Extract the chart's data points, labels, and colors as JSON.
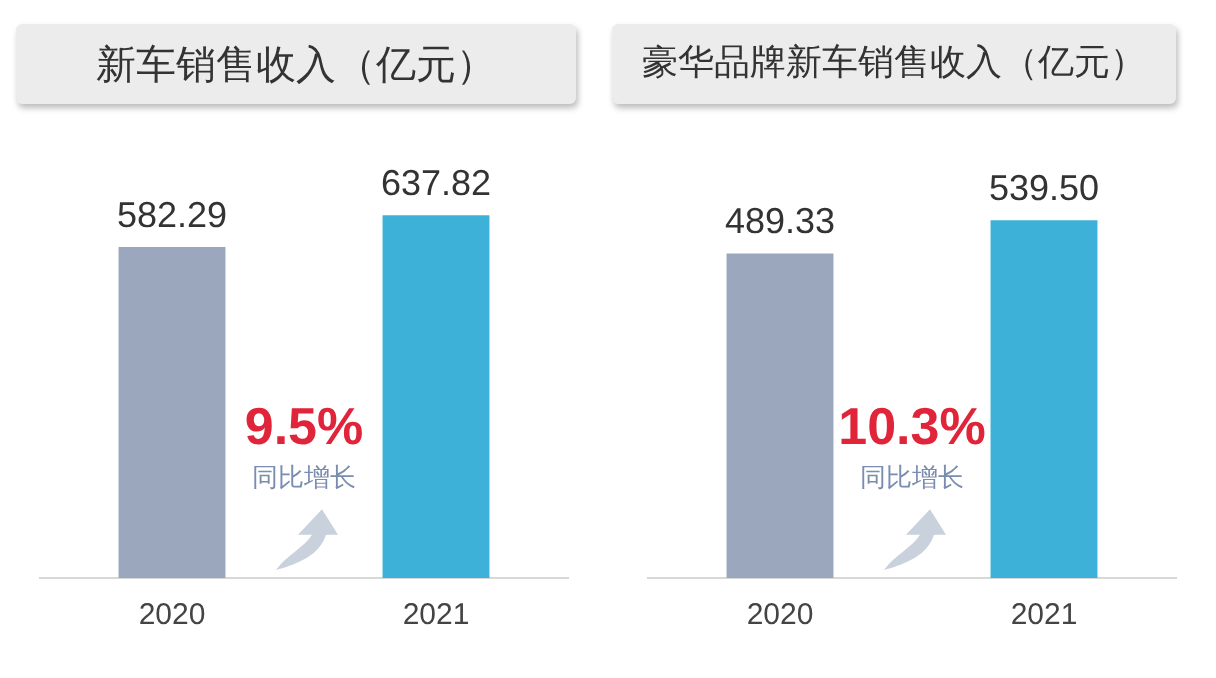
{
  "chart_data": [
    {
      "type": "bar",
      "title": "新车销售收入（亿元）",
      "categories": [
        "2020",
        "2021"
      ],
      "values": [
        582.29,
        637.82
      ],
      "colors": [
        "#9aa7bd",
        "#3eb1d8"
      ],
      "data_labels": true,
      "grid": false,
      "legend": false,
      "tick_labels": "x",
      "annotations": [
        "9.5%",
        "同比增长"
      ]
    },
    {
      "type": "bar",
      "title": "豪华品牌新车销售收入（亿元）",
      "categories": [
        "2020",
        "2021"
      ],
      "values": [
        489.33,
        539.5
      ],
      "colors": [
        "#9aa7bd",
        "#3eb1d8"
      ],
      "value_labels": [
        "489.33",
        "539.50"
      ],
      "grid": false,
      "legend": false,
      "tick_labels": "x",
      "annotations": [
        "10.3%",
        "同比增长"
      ]
    }
  ]
}
